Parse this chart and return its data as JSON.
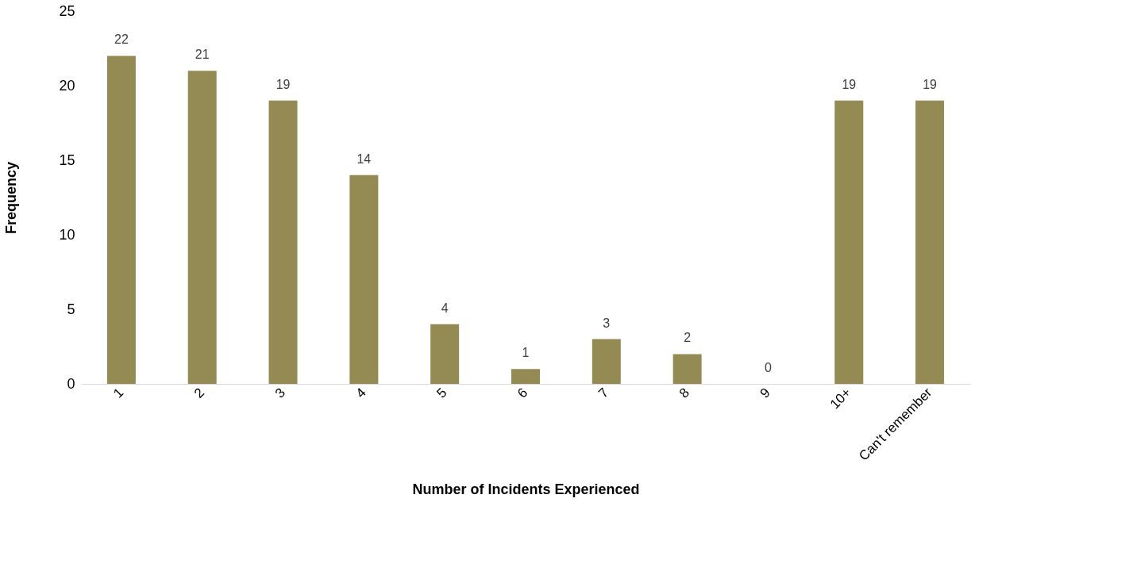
{
  "chart_data": {
    "type": "bar",
    "xlabel": "Number of Incidents Experienced",
    "ylabel": "Frequency",
    "categories": [
      "1",
      "2",
      "3",
      "4",
      "5",
      "6",
      "7",
      "8",
      "9",
      "10+",
      "Can't remember"
    ],
    "values": [
      22,
      21,
      19,
      14,
      4,
      1,
      3,
      2,
      0,
      19,
      19
    ],
    "color": "#948a54",
    "ylim": [
      0,
      25
    ],
    "yticks": [
      0,
      5,
      10,
      15,
      20,
      25
    ],
    "grid": false,
    "data_labels": true
  }
}
